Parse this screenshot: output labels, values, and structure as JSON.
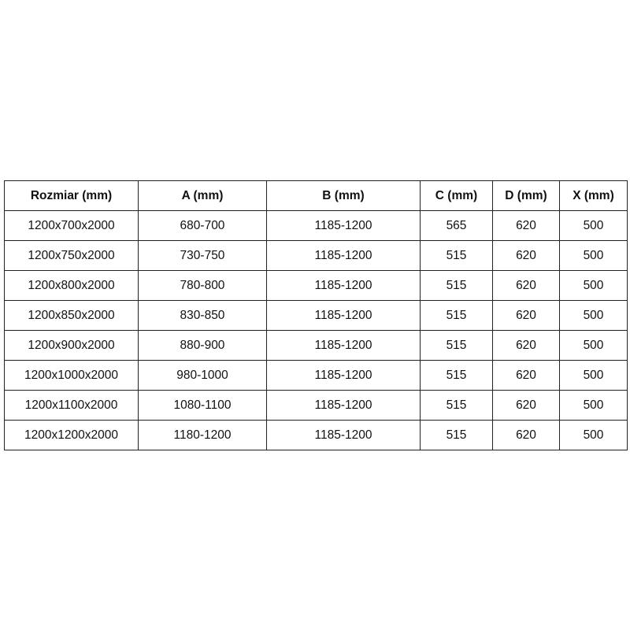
{
  "table": {
    "headers": [
      "Rozmiar (mm)",
      "A (mm)",
      "B (mm)",
      "C (mm)",
      "D (mm)",
      "X (mm)"
    ],
    "rows": [
      [
        "1200x700x2000",
        "680-700",
        "1185-1200",
        "565",
        "620",
        "500"
      ],
      [
        "1200x750x2000",
        "730-750",
        "1185-1200",
        "515",
        "620",
        "500"
      ],
      [
        "1200x800x2000",
        "780-800",
        "1185-1200",
        "515",
        "620",
        "500"
      ],
      [
        "1200x850x2000",
        "830-850",
        "1185-1200",
        "515",
        "620",
        "500"
      ],
      [
        "1200x900x2000",
        "880-900",
        "1185-1200",
        "515",
        "620",
        "500"
      ],
      [
        "1200x1000x2000",
        "980-1000",
        "1185-1200",
        "515",
        "620",
        "500"
      ],
      [
        "1200x1100x2000",
        "1080-1100",
        "1185-1200",
        "515",
        "620",
        "500"
      ],
      [
        "1200x1200x2000",
        "1180-1200",
        "1185-1200",
        "515",
        "620",
        "500"
      ]
    ]
  }
}
